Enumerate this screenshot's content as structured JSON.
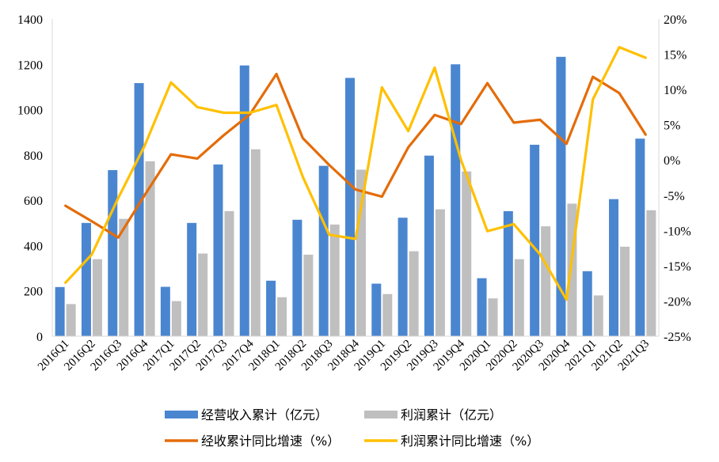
{
  "chart_data": {
    "type": "bar",
    "categories": [
      "2016Q1",
      "2016Q2",
      "2016Q3",
      "2016Q4",
      "2017Q1",
      "2017Q2",
      "2017Q3",
      "2017Q4",
      "2018Q1",
      "2018Q2",
      "2018Q3",
      "2018Q4",
      "2019Q1",
      "2019Q2",
      "2019Q3",
      "2019Q4",
      "2020Q1",
      "2020Q2",
      "2020Q3",
      "2020Q4",
      "2021Q1",
      "2021Q2",
      "2021Q3"
    ],
    "bar_series": [
      {
        "name": "经营收入累计（亿元）",
        "color": "#4A86D0",
        "values": [
          217,
          500,
          733,
          1117,
          218,
          500,
          758,
          1195,
          245,
          514,
          752,
          1140,
          232,
          523,
          797,
          1200,
          256,
          552,
          845,
          1233,
          287,
          605,
          872
        ]
      },
      {
        "name": "利润累计（亿元）",
        "color": "#BFBFBF",
        "values": [
          142,
          340,
          518,
          772,
          155,
          365,
          552,
          825,
          172,
          360,
          493,
          735,
          186,
          375,
          560,
          727,
          167,
          340,
          485,
          585,
          180,
          395,
          556
        ]
      }
    ],
    "line_series": [
      {
        "name": "经收累计同比增速（%）",
        "color": "#E46C0A",
        "values": [
          -6.5,
          -8.7,
          -11.0,
          -5.0,
          0.8,
          0.2,
          3.5,
          6.5,
          12.2,
          3.1,
          -0.7,
          -4.2,
          -5.2,
          1.8,
          6.4,
          5.1,
          10.9,
          5.3,
          5.7,
          2.3,
          11.8,
          9.5,
          3.6
        ]
      },
      {
        "name": "利润累计同比增速（%）",
        "color": "#FFC000",
        "values": [
          -17.4,
          -13.4,
          -5.4,
          2.0,
          11.0,
          7.5,
          6.7,
          6.7,
          7.8,
          -2.4,
          -10.6,
          -11.2,
          10.3,
          4.1,
          13.1,
          0.0,
          -10.1,
          -9.1,
          -13.4,
          -19.8,
          8.6,
          16.0,
          14.5
        ]
      }
    ],
    "y_left": {
      "min": 0,
      "max": 1400,
      "ticks": [
        "0",
        "200",
        "400",
        "600",
        "800",
        "1000",
        "1200",
        "1400"
      ]
    },
    "y_right": {
      "min": -25,
      "max": 20,
      "ticks": [
        "-25%",
        "-20%",
        "-15%",
        "-10%",
        "-5%",
        "0%",
        "5%",
        "10%",
        "15%",
        "20%"
      ]
    },
    "grid": false,
    "legend_position": "bottom"
  }
}
